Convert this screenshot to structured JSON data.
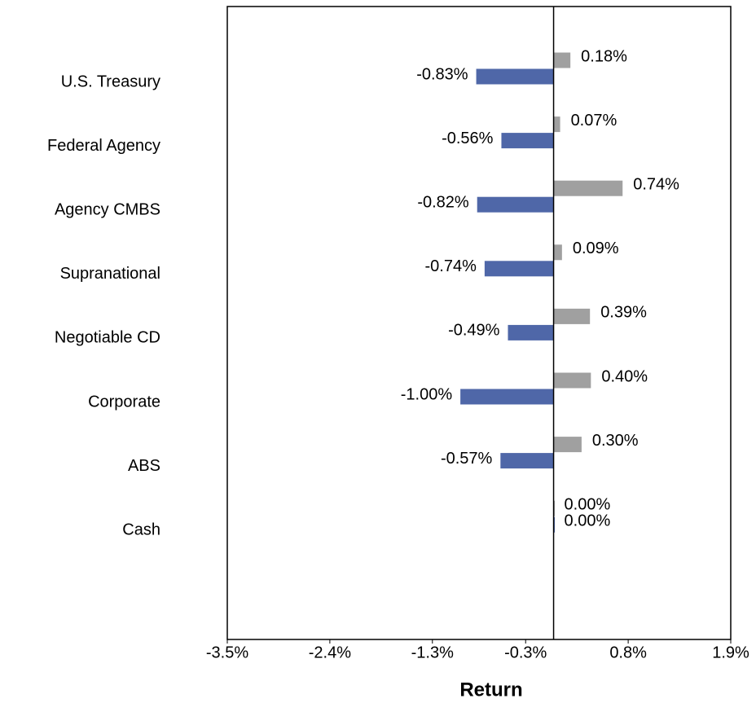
{
  "chart_data": {
    "type": "bar",
    "orientation": "horizontal",
    "xlabel": "Return",
    "categories": [
      "U.S. Treasury",
      "Federal Agency",
      "Agency CMBS",
      "Supranational",
      "Negotiable CD",
      "Corporate",
      "ABS",
      "Cash"
    ],
    "series": [
      {
        "color": "#a0a0a0",
        "values": [
          0.18,
          0.07,
          0.74,
          0.09,
          0.39,
          0.4,
          0.3,
          0.0
        ],
        "value_labels": [
          "0.18%",
          "0.07%",
          "0.74%",
          "0.09%",
          "0.39%",
          "0.40%",
          "0.30%",
          "0.00%"
        ]
      },
      {
        "color": "#4f67a8",
        "values": [
          -0.83,
          -0.56,
          -0.82,
          -0.74,
          -0.49,
          -1.0,
          -0.57,
          0.0
        ],
        "value_labels": [
          "-0.83%",
          "-0.56%",
          "-0.82%",
          "-0.74%",
          "-0.49%",
          "-1.00%",
          "-0.57%",
          "0.00%"
        ]
      }
    ],
    "xlim": [
      -3.5,
      1.9
    ],
    "xticks": [
      {
        "value": -3.5,
        "label": "-3.5%"
      },
      {
        "value": -2.4,
        "label": "-2.4%"
      },
      {
        "value": -1.3,
        "label": "-1.3%"
      },
      {
        "value": -0.3,
        "label": "-0.3%"
      },
      {
        "value": 0.8,
        "label": "0.8%"
      },
      {
        "value": 1.9,
        "label": "1.9%"
      }
    ],
    "grid": false
  }
}
